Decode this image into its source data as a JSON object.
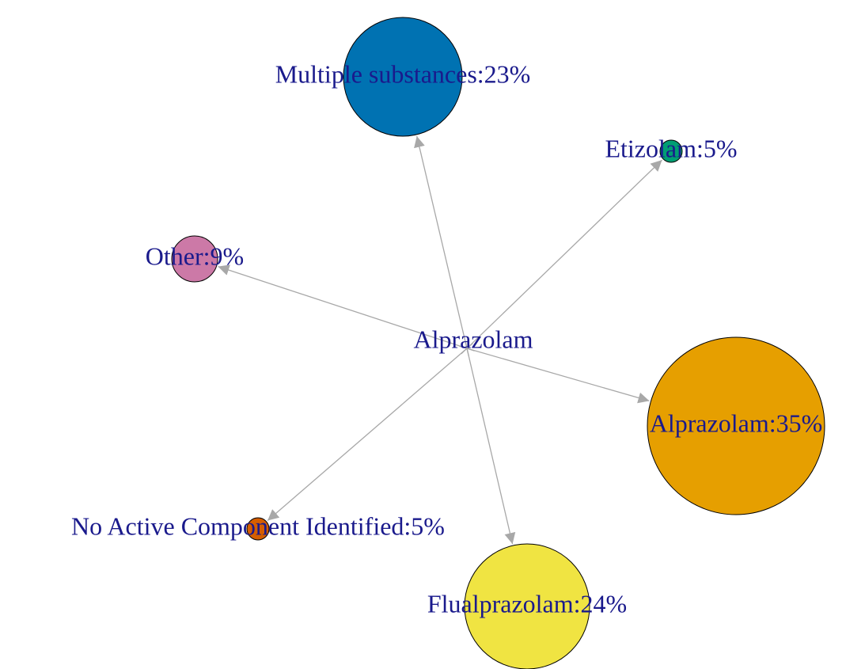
{
  "center": {
    "label": "Alprazolam"
  },
  "nodes": [
    {
      "label": "Multiple substances:23%",
      "color": "#0072B2"
    },
    {
      "label": "Etizolam:5%",
      "color": "#009E73"
    },
    {
      "label": "Other:9%",
      "color": "#CC79A7"
    },
    {
      "label": "Alprazolam:35%",
      "color": "#E69F00"
    },
    {
      "label": "No Active Component Identified:5%",
      "color": "#D55E00"
    },
    {
      "label": "Flualprazolam:24%",
      "color": "#F0E442"
    }
  ]
}
